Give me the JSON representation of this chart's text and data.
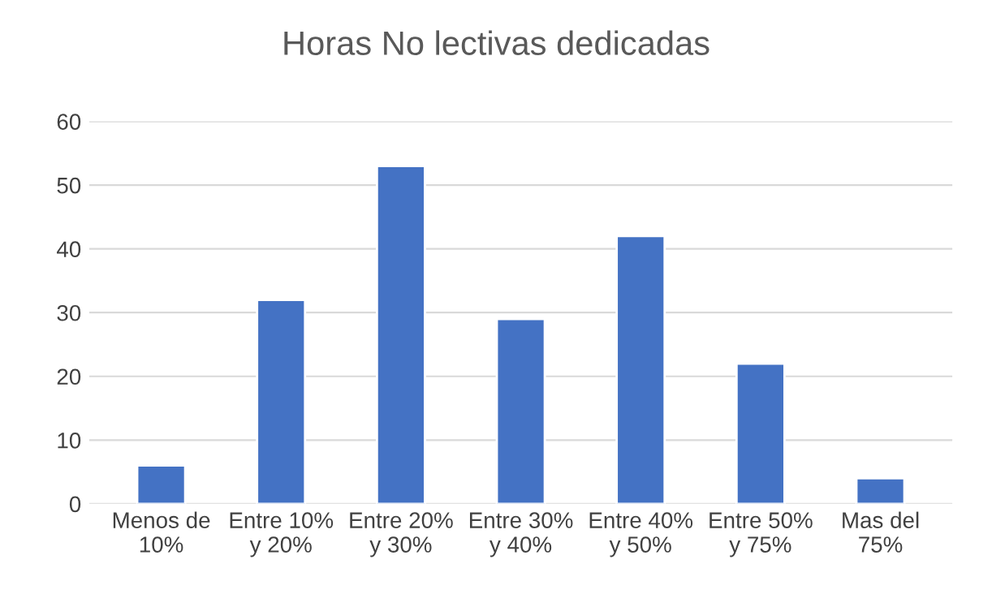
{
  "chart_data": {
    "type": "bar",
    "title": "Horas No lectivas dedicadas",
    "categories": [
      "Menos de\n10%",
      "Entre 10%\ny 20%",
      "Entre 20%\ny 30%",
      "Entre 30%\ny 40%",
      "Entre 40%\ny 50%",
      "Entre 50%\ny 75%",
      "Mas del\n75%"
    ],
    "values": [
      6,
      32,
      53,
      29,
      42,
      22,
      4
    ],
    "color": "#4472c4",
    "ylim": [
      0,
      60
    ],
    "yticks": [
      0,
      10,
      20,
      30,
      40,
      50,
      60
    ],
    "grid": "y"
  }
}
